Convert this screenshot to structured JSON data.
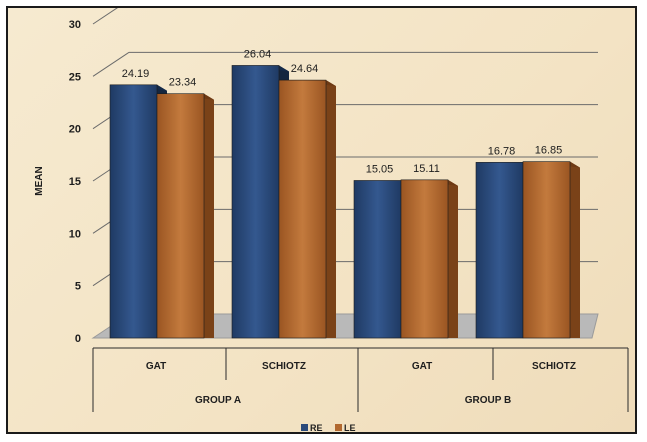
{
  "chart_data": {
    "type": "bar",
    "title": "",
    "ylabel": "MEAN",
    "xlabel": "",
    "ylim": [
      0,
      30
    ],
    "yticks": [
      0,
      5,
      10,
      15,
      20,
      25,
      30
    ],
    "grid": true,
    "legend_position": "bottom",
    "categories": [
      "GAT",
      "SCHIOTZ",
      "GAT",
      "SCHIOTZ"
    ],
    "groups": [
      {
        "label": "GROUP A",
        "categories": [
          "GAT",
          "SCHIOTZ"
        ]
      },
      {
        "label": "GROUP B",
        "categories": [
          "GAT",
          "SCHIOTZ"
        ]
      }
    ],
    "series": [
      {
        "name": "RE",
        "color": "#2b4a7a",
        "values": [
          24.19,
          26.04,
          15.05,
          16.78
        ],
        "labels": [
          "24.19",
          "26.04",
          "15.05",
          "16.78"
        ]
      },
      {
        "name": "LE",
        "color": "#b2682f",
        "values": [
          23.34,
          24.64,
          15.11,
          16.85
        ],
        "labels": [
          "23.34",
          "24.64",
          "15.11",
          "16.85"
        ]
      }
    ]
  }
}
